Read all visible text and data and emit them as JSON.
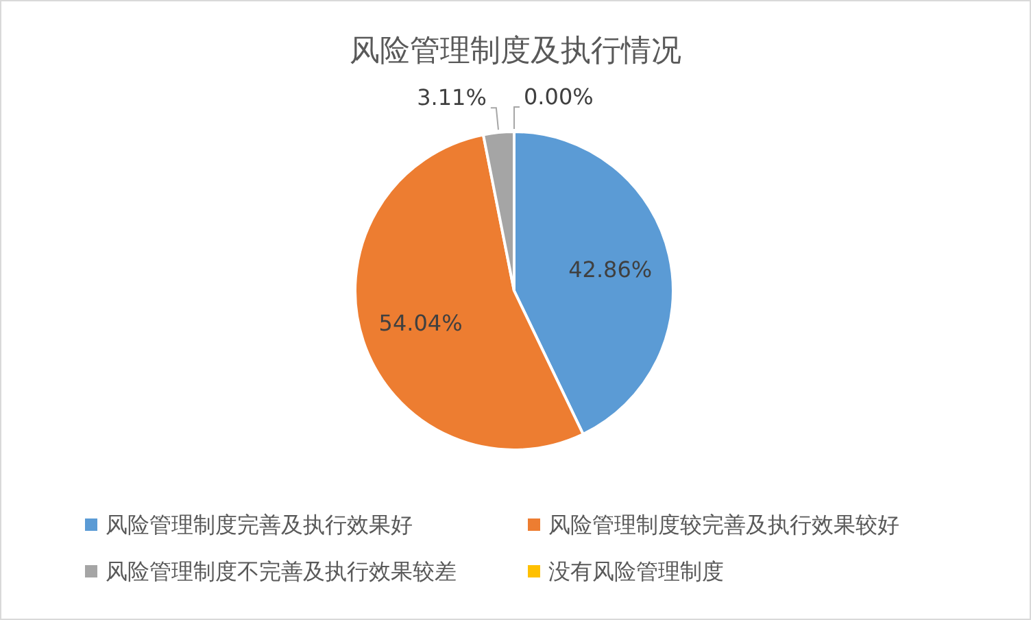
{
  "chart_data": {
    "type": "pie",
    "title": "风险管理制度及执行情况",
    "categories": [
      "风险管理制度完善及执行效果好",
      "风险管理制度较完善及执行效果较好",
      "风险管理制度不完善及执行效果较差",
      "没有风险管理制度"
    ],
    "values": [
      42.86,
      54.04,
      3.11,
      0.0
    ],
    "colors": [
      "#5b9bd5",
      "#ed7d31",
      "#a5a5a5",
      "#ffc000"
    ],
    "value_labels": [
      "42.86%",
      "54.04%",
      "3.11%",
      "0.00%"
    ],
    "legend": "bottom"
  }
}
